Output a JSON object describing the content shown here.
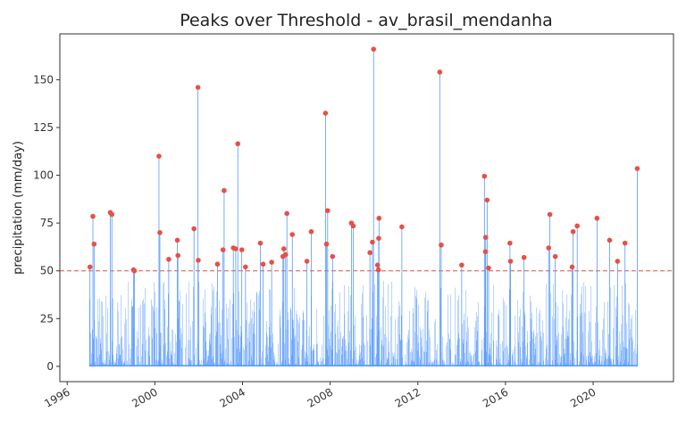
{
  "chart_data": {
    "type": "scatter",
    "title": "Peaks over Threshold - av_brasil_mendanha",
    "xlabel": "",
    "ylabel": "precipitation (mm/day)",
    "x_ticks": [
      "1996",
      "2000",
      "2004",
      "2008",
      "2012",
      "2016",
      "2020"
    ],
    "y_ticks": [
      0,
      25,
      50,
      75,
      100,
      125,
      150
    ],
    "xlim": [
      "1995-09-01",
      "2023-09-01"
    ],
    "ylim": [
      -8,
      174
    ],
    "threshold": 50,
    "grid": false,
    "series": [
      {
        "kind": "daily_precipitation",
        "note": "dense daily record from 1997 to 2022 (individual values not legible)",
        "date_range": [
          "1997-01-01",
          "2022-01-15"
        ],
        "typical_max": 45
      },
      {
        "kind": "peaks",
        "x": [
          "1997-01-15",
          "1997-03-05",
          "1997-03-25",
          "1997-12-20",
          "1998-01-15",
          "1999-01-10",
          "1999-01-25",
          "2000-03-10",
          "2000-03-25",
          "2000-08-20",
          "2001-01-10",
          "2001-01-20",
          "2001-10-15",
          "2001-12-20",
          "2001-12-25",
          "2002-11-10",
          "2003-02-10",
          "2003-03-01",
          "2003-08-01",
          "2003-09-10",
          "2003-10-15",
          "2003-12-20",
          "2004-02-20",
          "2004-10-25",
          "2004-12-10",
          "2005-05-01",
          "2005-11-05",
          "2005-11-20",
          "2005-12-20",
          "2006-01-10",
          "2006-04-10",
          "2006-12-10",
          "2007-02-20",
          "2007-10-15",
          "2007-11-01",
          "2007-11-20",
          "2008-02-10",
          "2008-12-20",
          "2009-01-20",
          "2009-10-25",
          "2009-12-05",
          "2009-12-25",
          "2010-03-01",
          "2010-03-15",
          "2010-03-20",
          "2010-03-25",
          "2011-04-10",
          "2013-01-01",
          "2013-01-25",
          "2014-01-01",
          "2015-01-15",
          "2015-02-01",
          "2015-02-05",
          "2015-03-01",
          "2015-03-25",
          "2016-03-15",
          "2016-03-25",
          "2016-11-05",
          "2017-12-20",
          "2018-01-10",
          "2018-04-10",
          "2019-01-15",
          "2019-02-01",
          "2019-04-10",
          "2020-03-05",
          "2020-10-01",
          "2021-02-10",
          "2021-06-15",
          "2022-01-05"
        ],
        "y": [
          52,
          78.5,
          64,
          80.5,
          79.5,
          50.5,
          50,
          110,
          70,
          56,
          66,
          58,
          72,
          146,
          55.5,
          53.5,
          61,
          92,
          62,
          61.5,
          116.5,
          61,
          52,
          64.5,
          53.5,
          54.5,
          57.5,
          61.5,
          58.5,
          80,
          69,
          55,
          70.5,
          132.5,
          64,
          81.5,
          57.5,
          75,
          73.5,
          59.5,
          65,
          166,
          53,
          50.5,
          67,
          77.5,
          73,
          154,
          63.5,
          53,
          99.5,
          60,
          67.5,
          87,
          51.5,
          64.5,
          55,
          57,
          62,
          79.5,
          57.5,
          52,
          70.5,
          73.5,
          77.5,
          66,
          55,
          64.5,
          103.5
        ]
      }
    ],
    "colors": {
      "daily": "#5599ff",
      "peaks": "#e94f45",
      "threshold": "#e94f45"
    }
  }
}
